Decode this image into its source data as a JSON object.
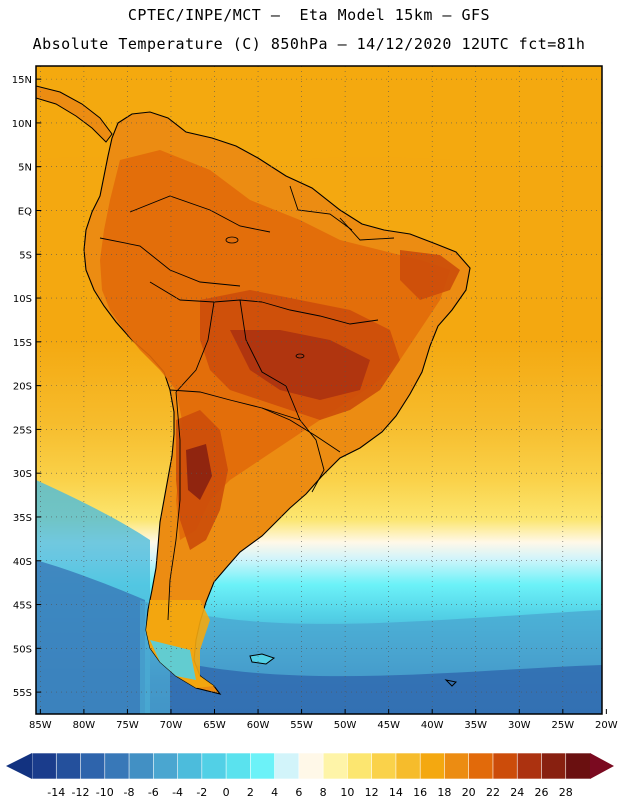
{
  "header": {
    "line1": "CPTEC/INPE/MCT –  Eta Model 15km – GFS",
    "line2": "Absolute Temperature (C) 850hPa – 14/12/2020 12UTC fct=81h"
  },
  "map": {
    "lat_labels": [
      "15N",
      "10N",
      "5N",
      "EQ",
      "5S",
      "10S",
      "15S",
      "20S",
      "25S",
      "30S",
      "35S",
      "40S",
      "45S",
      "50S",
      "55S"
    ],
    "lon_labels": [
      "85W",
      "80W",
      "75W",
      "70W",
      "65W",
      "60W",
      "55W",
      "50W",
      "45W",
      "40W",
      "35W",
      "30W",
      "25W",
      "20W"
    ],
    "lat_range": [
      -57.5,
      16.5
    ],
    "lon_range": [
      -85.5,
      -20.5
    ],
    "variable": "Absolute Temperature (C)",
    "level": "850hPa"
  },
  "colorbar": {
    "labels": [
      "-14",
      "-12",
      "-10",
      "-8",
      "-6",
      "-4",
      "-2",
      "0",
      "2",
      "4",
      "6",
      "8",
      "10",
      "12",
      "14",
      "16",
      "18",
      "20",
      "22",
      "24",
      "26",
      "28"
    ],
    "colors": [
      "#1a3c8c",
      "#24509c",
      "#2e64ac",
      "#3878b8",
      "#4290c4",
      "#4aa6d0",
      "#4cbcdc",
      "#52d0e6",
      "#5ae2ee",
      "#6cf2f8",
      "#d2f4fa",
      "#fff8e8",
      "#fef4a8",
      "#fce670",
      "#fad24a",
      "#f6bc2c",
      "#f4a810",
      "#ec8c12",
      "#e26a0a",
      "#cc4c0a",
      "#ac3210",
      "#882010",
      "#6a1010"
    ],
    "under_color": "#123280",
    "over_color": "#7a0a20"
  }
}
